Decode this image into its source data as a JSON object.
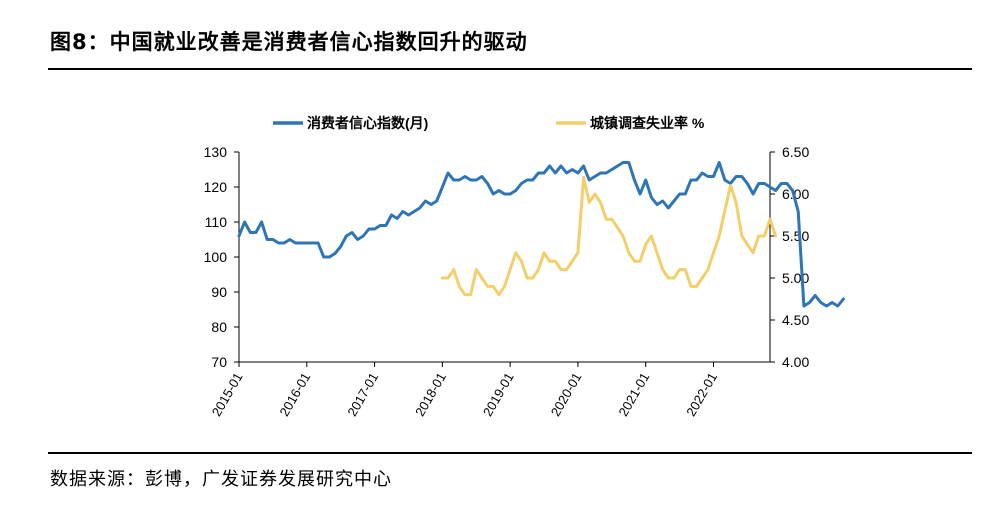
{
  "header": {
    "title": "图8：中国就业改善是消费者信心指数回升的驱动"
  },
  "footer": {
    "source": "数据来源：彭博，广发证券发展研究中心"
  },
  "chart_data": {
    "type": "line",
    "title": "中国就业改善是消费者信心指数回升的驱动",
    "x_ticks": [
      "2015-01",
      "2016-01",
      "2017-01",
      "2018-01",
      "2019-01",
      "2020-01",
      "2021-01",
      "2022-01"
    ],
    "x_range": [
      "2015-01",
      "2022-11"
    ],
    "y_left": {
      "range": [
        70,
        130
      ],
      "ticks": [
        "70",
        "80",
        "90",
        "100",
        "110",
        "120",
        "130"
      ]
    },
    "y_right": {
      "range": [
        4.0,
        6.5
      ],
      "ticks": [
        "4.00",
        "4.50",
        "5.00",
        "5.50",
        "6.00",
        "6.50"
      ]
    },
    "grid": false,
    "legend_position": "top",
    "colors": {
      "confidence": "#2e75b6",
      "unemployment": "#f2cf6b"
    },
    "series": [
      {
        "name": "消费者信心指数(月)",
        "axis": "left",
        "start": "2015-01",
        "values": [
          106,
          110,
          107,
          107,
          110,
          105,
          105,
          104,
          104,
          105,
          104,
          104,
          104,
          104,
          104,
          100,
          100,
          101,
          103,
          106,
          107,
          105,
          106,
          108,
          108,
          109,
          109,
          112,
          111,
          113,
          112,
          113,
          114,
          116,
          115,
          116,
          120,
          124,
          122,
          122,
          123,
          122,
          122,
          123,
          121,
          118,
          119,
          118,
          118,
          119,
          121,
          122,
          122,
          124,
          124,
          126,
          124,
          126,
          124,
          125,
          124,
          126,
          122,
          123,
          124,
          124,
          125,
          126,
          127,
          127,
          122,
          118,
          122,
          117,
          115,
          116,
          114,
          116,
          118,
          118,
          122,
          122,
          124,
          123,
          123,
          127,
          122,
          121,
          123,
          123,
          121,
          118,
          121,
          121,
          120,
          119,
          121,
          121,
          119,
          113,
          86,
          87,
          89,
          87,
          86,
          87,
          86,
          88
        ]
      },
      {
        "name": "城镇调查失业率 %",
        "axis": "right",
        "start": "2018-01",
        "values": [
          5.0,
          5.0,
          5.1,
          4.9,
          4.8,
          4.8,
          5.1,
          5.0,
          4.9,
          4.9,
          4.8,
          4.9,
          5.1,
          5.3,
          5.2,
          5.0,
          5.0,
          5.1,
          5.3,
          5.2,
          5.2,
          5.1,
          5.1,
          5.2,
          5.3,
          6.2,
          5.9,
          6.0,
          5.9,
          5.7,
          5.7,
          5.6,
          5.5,
          5.3,
          5.2,
          5.2,
          5.4,
          5.5,
          5.3,
          5.1,
          5.0,
          5.0,
          5.1,
          5.1,
          4.9,
          4.9,
          5.0,
          5.1,
          5.3,
          5.5,
          5.8,
          6.1,
          5.9,
          5.5,
          5.4,
          5.3,
          5.5,
          5.5,
          5.7,
          5.5
        ]
      }
    ]
  }
}
